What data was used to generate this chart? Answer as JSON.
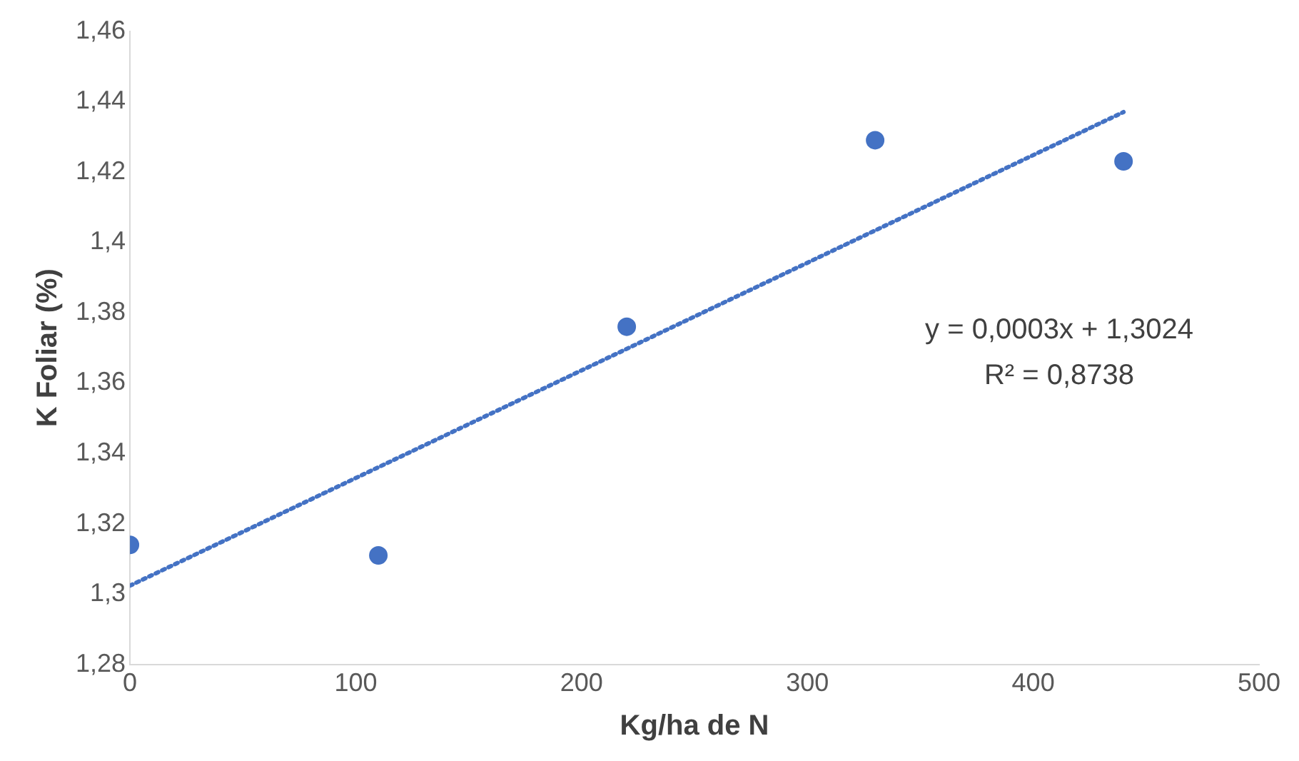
{
  "chart_data": {
    "type": "scatter",
    "xlabel": "Kg/ha de N",
    "ylabel": "K Foliar (%)",
    "x": [
      0,
      110,
      220,
      330,
      440
    ],
    "series": [
      {
        "type": "scatter",
        "color": "#4472c4",
        "values": [
          1.314,
          1.311,
          1.376,
          1.429,
          1.423
        ],
        "marker": "circle"
      },
      {
        "type": "line",
        "color": "#4472c4",
        "x": [
          0,
          440
        ],
        "values": [
          1.3024,
          1.437
        ],
        "line_style": "dotted",
        "marker": "none"
      }
    ],
    "xlim": [
      0,
      500
    ],
    "xticks": [
      0,
      100,
      200,
      300,
      400,
      500
    ],
    "ylim": [
      1.28,
      1.46
    ],
    "yticks": [
      {
        "value": 1.28,
        "label": "1,28"
      },
      {
        "value": 1.3,
        "label": "1,3"
      },
      {
        "value": 1.32,
        "label": "1,32"
      },
      {
        "value": 1.34,
        "label": "1,34"
      },
      {
        "value": 1.36,
        "label": "1,36"
      },
      {
        "value": 1.38,
        "label": "1,38"
      },
      {
        "value": 1.4,
        "label": "1,4"
      },
      {
        "value": 1.42,
        "label": "1,42"
      },
      {
        "value": 1.44,
        "label": "1,44"
      },
      {
        "value": 1.46,
        "label": "1,46"
      }
    ],
    "annotations": [
      "y = 0,0003x + 1,3024",
      "R² = 0,8738"
    ],
    "grid": false,
    "legend": false
  }
}
